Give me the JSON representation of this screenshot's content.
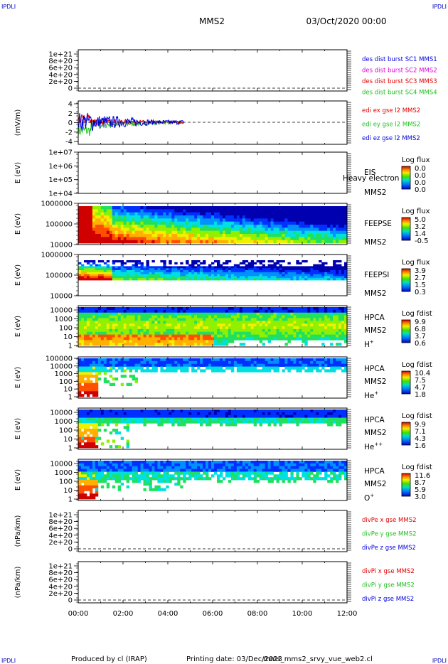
{
  "corner_label": "IPDLI",
  "header": {
    "title": "MMS2",
    "date": "03/Oct/2020 00:00"
  },
  "footer": {
    "produced": "Produced by cl (IRAP)",
    "printing": "Printing date: 03/Dec/2023",
    "file": "mms_mms2_srvy_vue_web2.cl"
  },
  "colors": {
    "red": "#e00000",
    "magenta": "#e000e0",
    "green": "#20c020",
    "blue": "#0000e0",
    "grid": "#000000"
  },
  "time_axis": {
    "ticks": [
      "00:00",
      "02:00",
      "04:00",
      "06:00",
      "08:00",
      "10:00",
      "12:00"
    ],
    "range_hours": [
      0,
      12
    ]
  },
  "chart_data": [
    {
      "type": "line",
      "id": "des",
      "ylabel": "",
      "yticks": [
        "1e+21",
        "8e+20",
        "6e+20",
        "4e+20",
        "2e+20",
        "0"
      ],
      "legend": [
        {
          "text": "des dist burst SC1 MMS1",
          "color": "#0000e0"
        },
        {
          "text": "des dist burst SC2 MMS2",
          "color": "#e000e0"
        },
        {
          "text": "des dist burst SC3 MMS3",
          "color": "#e00000"
        },
        {
          "text": "des dist burst SC4 MMS4",
          "color": "#20c020"
        }
      ],
      "series": []
    },
    {
      "type": "line",
      "id": "edi",
      "ylabel": "(mV/m)",
      "yticks": [
        "4",
        "2",
        "0",
        "-2",
        "-4"
      ],
      "ylim": [
        -5,
        5
      ],
      "legend": [
        {
          "text": "edi ex gse l2 MMS2",
          "color": "#e00000"
        },
        {
          "text": "edi ey gse l2 MMS2",
          "color": "#20c020"
        },
        {
          "text": "edi ez gse l2 MMS2",
          "color": "#0000e0"
        }
      ],
      "x_extent_hours": [
        0,
        4.7
      ]
    },
    {
      "type": "heatmap",
      "id": "eis",
      "ylabel": "E (eV)",
      "yticks": [
        "1e+07",
        "1e+06",
        "1e+05",
        "1e+04"
      ],
      "right_label": [
        "EIS",
        "Heavy electron to",
        "MMS2"
      ],
      "colorbar": {
        "title": "Log flux",
        "ticks": [
          "0.0",
          "0.0",
          "0.0",
          "0.0"
        ]
      },
      "empty": true
    },
    {
      "type": "heatmap",
      "id": "feepse",
      "ylabel": "E (eV)",
      "yticks": [
        "1000000",
        "100000",
        "10000"
      ],
      "right_label": [
        "FEEPSE",
        "MMS2"
      ],
      "colorbar": {
        "title": "Log flux",
        "ticks": [
          "5.0",
          "3.2",
          "1.4",
          "-0.5"
        ]
      }
    },
    {
      "type": "heatmap",
      "id": "feepsi",
      "ylabel": "E (eV)",
      "yticks": [
        "1000000",
        "100000",
        "10000"
      ],
      "right_label": [
        "FEEPSI",
        "MMS2"
      ],
      "colorbar": {
        "title": "Log flux",
        "ticks": [
          "3.9",
          "2.7",
          "1.5",
          "0.3"
        ]
      }
    },
    {
      "type": "heatmap",
      "id": "hpca_h",
      "ylabel": "E (eV)",
      "yticks": [
        "10000",
        "1000",
        "100",
        "10",
        "1"
      ],
      "right_label": [
        "HPCA",
        "MMS2",
        "H"
      ],
      "species_sup": "+",
      "colorbar": {
        "title": "Log fdist",
        "ticks": [
          "9.9",
          "6.8",
          "3.7",
          "0.6"
        ]
      }
    },
    {
      "type": "heatmap",
      "id": "hpca_he",
      "ylabel": "E (eV)",
      "yticks": [
        "100000",
        "10000",
        "1000",
        "100",
        "10",
        "1"
      ],
      "right_label": [
        "HPCA",
        "MMS2",
        "He"
      ],
      "species_sup": "+",
      "colorbar": {
        "title": "Log fdist",
        "ticks": [
          "10.4",
          "7.5",
          "4.7",
          "1.8"
        ]
      }
    },
    {
      "type": "heatmap",
      "id": "hpca_hepp",
      "ylabel": "E (eV)",
      "yticks": [
        "10000",
        "1000",
        "100",
        "10",
        "1"
      ],
      "right_label": [
        "HPCA",
        "MMS2",
        "He"
      ],
      "species_sup": "++",
      "colorbar": {
        "title": "Log fdist",
        "ticks": [
          "9.9",
          "7.1",
          "4.3",
          "1.6"
        ]
      }
    },
    {
      "type": "heatmap",
      "id": "hpca_o",
      "ylabel": "E (eV)",
      "yticks": [
        "10000",
        "1000",
        "100",
        "10",
        "1"
      ],
      "right_label": [
        "HPCA",
        "MMS2",
        "O"
      ],
      "species_sup": "+",
      "colorbar": {
        "title": "Log fdist",
        "ticks": [
          "11.6",
          "8.7",
          "5.9",
          "3.0"
        ]
      }
    },
    {
      "type": "line",
      "id": "divpe",
      "ylabel": "(nPa/km)",
      "yticks": [
        "1e+21",
        "8e+20",
        "6e+20",
        "4e+20",
        "2e+20",
        "0"
      ],
      "legend": [
        {
          "text": "divPe x gse MMS2",
          "color": "#e00000"
        },
        {
          "text": "divPe y gse MMS2",
          "color": "#20c020"
        },
        {
          "text": "divPe z gse MMS2",
          "color": "#0000e0"
        }
      ],
      "series": []
    },
    {
      "type": "line",
      "id": "divpi",
      "ylabel": "(nPa/km)",
      "yticks": [
        "1e+21",
        "8e+20",
        "6e+20",
        "4e+20",
        "2e+20",
        "0"
      ],
      "legend": [
        {
          "text": "divPi x gse MMS2",
          "color": "#e00000"
        },
        {
          "text": "divPi y gse MMS2",
          "color": "#20c020"
        },
        {
          "text": "divPi z gse MMS2",
          "color": "#0000e0"
        }
      ],
      "series": []
    }
  ]
}
